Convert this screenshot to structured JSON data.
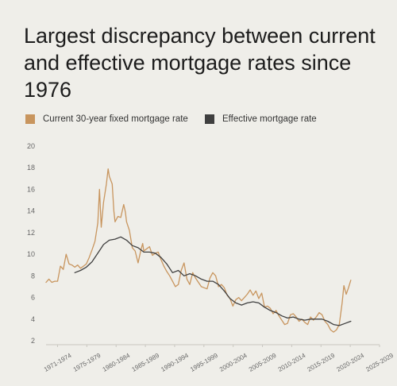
{
  "title": "Largest discrepancy between current and effective mortgage rates since 1976",
  "legend": [
    {
      "label": "Current 30-year fixed mortgage rate",
      "color": "#c8955e"
    },
    {
      "label": "Effective mortgage rate",
      "color": "#3f3f3f"
    }
  ],
  "chart_data": {
    "type": "line",
    "title": "Largest discrepancy between current and effective mortgage rates since 1976",
    "xlabel": "",
    "ylabel": "",
    "ylim": [
      2,
      20
    ],
    "xlim": [
      1971,
      2029
    ],
    "yticks": [
      2,
      4,
      6,
      8,
      10,
      12,
      14,
      16,
      18,
      20
    ],
    "xtick_labels": [
      "1971-1974",
      "1975-1979",
      "1980-1984",
      "1985-1989",
      "1990-1994",
      "1995-1999",
      "2000-2004",
      "2005-2009",
      "2010-2014",
      "2015-2019",
      "2020-2024",
      "2025-2029"
    ],
    "grid": false,
    "legend_position": "top",
    "series": [
      {
        "name": "Current 30-year fixed mortgage rate",
        "color": "#c8955e",
        "points": [
          [
            1971.0,
            7.4
          ],
          [
            1971.5,
            7.7
          ],
          [
            1972.0,
            7.4
          ],
          [
            1972.5,
            7.5
          ],
          [
            1973.0,
            7.5
          ],
          [
            1973.5,
            8.9
          ],
          [
            1974.0,
            8.6
          ],
          [
            1974.5,
            10.0
          ],
          [
            1975.0,
            9.1
          ],
          [
            1975.5,
            9.0
          ],
          [
            1976.0,
            8.8
          ],
          [
            1976.5,
            9.0
          ],
          [
            1977.0,
            8.7
          ],
          [
            1977.5,
            8.9
          ],
          [
            1978.0,
            9.1
          ],
          [
            1978.5,
            9.7
          ],
          [
            1979.0,
            10.4
          ],
          [
            1979.5,
            11.2
          ],
          [
            1980.0,
            12.9
          ],
          [
            1980.3,
            16.0
          ],
          [
            1980.6,
            12.5
          ],
          [
            1981.0,
            14.8
          ],
          [
            1981.5,
            16.5
          ],
          [
            1981.8,
            17.9
          ],
          [
            1982.0,
            17.2
          ],
          [
            1982.5,
            16.5
          ],
          [
            1982.8,
            14.0
          ],
          [
            1983.0,
            13.0
          ],
          [
            1983.5,
            13.5
          ],
          [
            1984.0,
            13.4
          ],
          [
            1984.5,
            14.6
          ],
          [
            1984.8,
            13.9
          ],
          [
            1985.0,
            13.0
          ],
          [
            1985.5,
            12.2
          ],
          [
            1986.0,
            10.6
          ],
          [
            1986.5,
            10.3
          ],
          [
            1987.0,
            9.2
          ],
          [
            1987.5,
            10.4
          ],
          [
            1987.8,
            11.0
          ],
          [
            1988.0,
            10.3
          ],
          [
            1988.5,
            10.5
          ],
          [
            1989.0,
            10.7
          ],
          [
            1989.5,
            9.9
          ],
          [
            1990.0,
            10.1
          ],
          [
            1990.5,
            10.2
          ],
          [
            1991.0,
            9.5
          ],
          [
            1991.5,
            8.9
          ],
          [
            1992.0,
            8.4
          ],
          [
            1992.5,
            8.0
          ],
          [
            1993.0,
            7.5
          ],
          [
            1993.5,
            7.0
          ],
          [
            1994.0,
            7.2
          ],
          [
            1994.5,
            8.5
          ],
          [
            1995.0,
            9.2
          ],
          [
            1995.5,
            7.7
          ],
          [
            1996.0,
            7.2
          ],
          [
            1996.5,
            8.3
          ],
          [
            1997.0,
            7.8
          ],
          [
            1997.5,
            7.4
          ],
          [
            1998.0,
            7.0
          ],
          [
            1998.5,
            6.9
          ],
          [
            1999.0,
            6.8
          ],
          [
            1999.5,
            7.8
          ],
          [
            2000.0,
            8.3
          ],
          [
            2000.5,
            8.0
          ],
          [
            2001.0,
            7.0
          ],
          [
            2001.5,
            7.2
          ],
          [
            2002.0,
            6.9
          ],
          [
            2002.5,
            6.2
          ],
          [
            2003.0,
            5.9
          ],
          [
            2003.5,
            5.2
          ],
          [
            2004.0,
            5.8
          ],
          [
            2004.5,
            6.0
          ],
          [
            2005.0,
            5.7
          ],
          [
            2005.5,
            6.0
          ],
          [
            2006.0,
            6.3
          ],
          [
            2006.5,
            6.7
          ],
          [
            2007.0,
            6.2
          ],
          [
            2007.5,
            6.6
          ],
          [
            2008.0,
            5.9
          ],
          [
            2008.5,
            6.4
          ],
          [
            2009.0,
            5.1
          ],
          [
            2009.5,
            5.2
          ],
          [
            2010.0,
            5.0
          ],
          [
            2010.5,
            4.5
          ],
          [
            2011.0,
            4.8
          ],
          [
            2011.5,
            4.3
          ],
          [
            2012.0,
            3.9
          ],
          [
            2012.5,
            3.5
          ],
          [
            2013.0,
            3.6
          ],
          [
            2013.5,
            4.4
          ],
          [
            2014.0,
            4.5
          ],
          [
            2014.5,
            4.2
          ],
          [
            2015.0,
            3.8
          ],
          [
            2015.5,
            4.0
          ],
          [
            2016.0,
            3.7
          ],
          [
            2016.5,
            3.5
          ],
          [
            2017.0,
            4.2
          ],
          [
            2017.5,
            3.9
          ],
          [
            2018.0,
            4.2
          ],
          [
            2018.5,
            4.6
          ],
          [
            2019.0,
            4.4
          ],
          [
            2019.5,
            3.8
          ],
          [
            2020.0,
            3.5
          ],
          [
            2020.5,
            3.0
          ],
          [
            2021.0,
            2.8
          ],
          [
            2021.5,
            3.0
          ],
          [
            2022.0,
            3.5
          ],
          [
            2022.5,
            5.5
          ],
          [
            2022.8,
            7.1
          ],
          [
            2023.2,
            6.3
          ],
          [
            2023.6,
            6.9
          ],
          [
            2024.0,
            7.6
          ]
        ]
      },
      {
        "name": "Effective mortgage rate",
        "color": "#3f3f3f",
        "points": [
          [
            1976.0,
            8.3
          ],
          [
            1977.0,
            8.5
          ],
          [
            1978.0,
            8.8
          ],
          [
            1979.0,
            9.3
          ],
          [
            1980.0,
            10.1
          ],
          [
            1981.0,
            10.9
          ],
          [
            1982.0,
            11.3
          ],
          [
            1983.0,
            11.4
          ],
          [
            1984.0,
            11.6
          ],
          [
            1985.0,
            11.3
          ],
          [
            1986.0,
            10.8
          ],
          [
            1987.0,
            10.6
          ],
          [
            1988.0,
            10.2
          ],
          [
            1989.0,
            10.2
          ],
          [
            1990.0,
            10.1
          ],
          [
            1991.0,
            9.7
          ],
          [
            1992.0,
            9.1
          ],
          [
            1993.0,
            8.3
          ],
          [
            1994.0,
            8.5
          ],
          [
            1995.0,
            8.0
          ],
          [
            1996.0,
            8.2
          ],
          [
            1997.0,
            8.0
          ],
          [
            1998.0,
            7.7
          ],
          [
            1999.0,
            7.5
          ],
          [
            2000.0,
            7.5
          ],
          [
            2001.0,
            7.2
          ],
          [
            2002.0,
            6.6
          ],
          [
            2003.0,
            5.9
          ],
          [
            2004.0,
            5.5
          ],
          [
            2005.0,
            5.3
          ],
          [
            2006.0,
            5.5
          ],
          [
            2007.0,
            5.6
          ],
          [
            2008.0,
            5.5
          ],
          [
            2009.0,
            5.1
          ],
          [
            2010.0,
            4.8
          ],
          [
            2011.0,
            4.6
          ],
          [
            2012.0,
            4.3
          ],
          [
            2013.0,
            4.1
          ],
          [
            2014.0,
            4.2
          ],
          [
            2015.0,
            4.0
          ],
          [
            2016.0,
            3.9
          ],
          [
            2017.0,
            4.0
          ],
          [
            2018.0,
            4.0
          ],
          [
            2019.0,
            4.0
          ],
          [
            2020.0,
            3.8
          ],
          [
            2021.0,
            3.5
          ],
          [
            2022.0,
            3.4
          ],
          [
            2023.0,
            3.6
          ],
          [
            2024.0,
            3.8
          ]
        ]
      }
    ]
  }
}
